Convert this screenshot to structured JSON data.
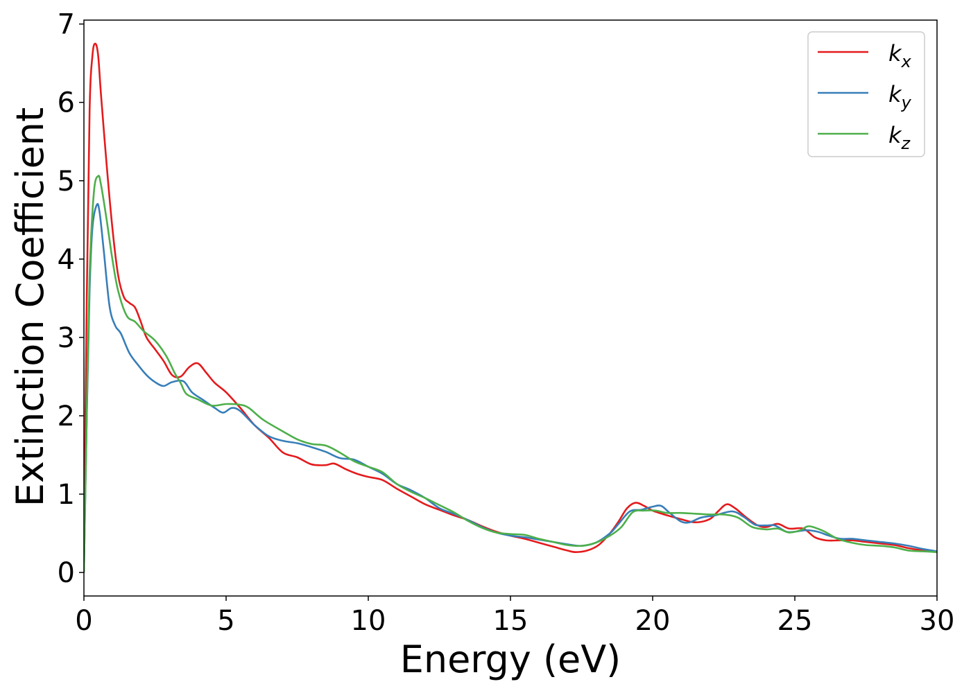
{
  "chart_data": {
    "type": "line",
    "xlabel": "Energy (eV)",
    "ylabel": "Extinction Coefficient",
    "xlim": [
      0,
      30
    ],
    "ylim": [
      -0.3,
      7.05
    ],
    "xticks": [
      0,
      5,
      10,
      15,
      20,
      25,
      30
    ],
    "yticks": [
      0,
      1,
      2,
      3,
      4,
      5,
      6,
      7
    ],
    "grid": false,
    "legend_position": "top-right",
    "series": [
      {
        "key": "kx",
        "name": "k",
        "sub": "x",
        "color": "#e41a1c",
        "points": [
          [
            0,
            0.0
          ],
          [
            0.1,
            3.5
          ],
          [
            0.2,
            5.9
          ],
          [
            0.3,
            6.6
          ],
          [
            0.4,
            6.75
          ],
          [
            0.5,
            6.6
          ],
          [
            0.6,
            6.1
          ],
          [
            0.8,
            5.2
          ],
          [
            1.0,
            4.4
          ],
          [
            1.2,
            3.8
          ],
          [
            1.4,
            3.52
          ],
          [
            1.6,
            3.44
          ],
          [
            1.8,
            3.38
          ],
          [
            2.0,
            3.2
          ],
          [
            2.2,
            3.0
          ],
          [
            2.5,
            2.85
          ],
          [
            2.8,
            2.7
          ],
          [
            3.1,
            2.52
          ],
          [
            3.4,
            2.5
          ],
          [
            3.7,
            2.62
          ],
          [
            4.0,
            2.67
          ],
          [
            4.3,
            2.55
          ],
          [
            4.6,
            2.42
          ],
          [
            5.0,
            2.3
          ],
          [
            5.5,
            2.1
          ],
          [
            6.0,
            1.88
          ],
          [
            6.5,
            1.72
          ],
          [
            7.0,
            1.53
          ],
          [
            7.5,
            1.47
          ],
          [
            8.0,
            1.38
          ],
          [
            8.5,
            1.37
          ],
          [
            8.8,
            1.39
          ],
          [
            9.2,
            1.32
          ],
          [
            9.6,
            1.26
          ],
          [
            10.0,
            1.22
          ],
          [
            10.5,
            1.18
          ],
          [
            11.0,
            1.07
          ],
          [
            11.5,
            0.97
          ],
          [
            12.0,
            0.87
          ],
          [
            12.5,
            0.8
          ],
          [
            13.0,
            0.73
          ],
          [
            13.5,
            0.67
          ],
          [
            14.0,
            0.59
          ],
          [
            14.5,
            0.52
          ],
          [
            15.0,
            0.47
          ],
          [
            15.5,
            0.43
          ],
          [
            16.0,
            0.38
          ],
          [
            16.5,
            0.33
          ],
          [
            17.0,
            0.28
          ],
          [
            17.3,
            0.26
          ],
          [
            17.7,
            0.28
          ],
          [
            18.1,
            0.35
          ],
          [
            18.5,
            0.5
          ],
          [
            18.8,
            0.65
          ],
          [
            19.1,
            0.82
          ],
          [
            19.4,
            0.89
          ],
          [
            19.7,
            0.85
          ],
          [
            20.0,
            0.79
          ],
          [
            20.5,
            0.73
          ],
          [
            21.0,
            0.68
          ],
          [
            21.5,
            0.64
          ],
          [
            22.0,
            0.68
          ],
          [
            22.3,
            0.78
          ],
          [
            22.6,
            0.87
          ],
          [
            22.9,
            0.82
          ],
          [
            23.3,
            0.7
          ],
          [
            23.7,
            0.6
          ],
          [
            24.0,
            0.58
          ],
          [
            24.4,
            0.62
          ],
          [
            24.8,
            0.56
          ],
          [
            25.3,
            0.56
          ],
          [
            25.7,
            0.45
          ],
          [
            26.1,
            0.41
          ],
          [
            26.6,
            0.41
          ],
          [
            27.0,
            0.41
          ],
          [
            27.5,
            0.39
          ],
          [
            28.0,
            0.37
          ],
          [
            28.5,
            0.35
          ],
          [
            29.0,
            0.31
          ],
          [
            29.5,
            0.28
          ],
          [
            30.0,
            0.26
          ]
        ]
      },
      {
        "key": "ky",
        "name": "k",
        "sub": "y",
        "color": "#377eb8",
        "points": [
          [
            0,
            0.0
          ],
          [
            0.1,
            2.0
          ],
          [
            0.2,
            3.6
          ],
          [
            0.3,
            4.4
          ],
          [
            0.45,
            4.69
          ],
          [
            0.55,
            4.6
          ],
          [
            0.7,
            4.1
          ],
          [
            0.9,
            3.4
          ],
          [
            1.1,
            3.15
          ],
          [
            1.3,
            3.05
          ],
          [
            1.6,
            2.8
          ],
          [
            1.9,
            2.65
          ],
          [
            2.2,
            2.52
          ],
          [
            2.5,
            2.43
          ],
          [
            2.8,
            2.38
          ],
          [
            3.1,
            2.43
          ],
          [
            3.5,
            2.44
          ],
          [
            3.8,
            2.3
          ],
          [
            4.2,
            2.2
          ],
          [
            4.6,
            2.1
          ],
          [
            4.9,
            2.04
          ],
          [
            5.2,
            2.1
          ],
          [
            5.5,
            2.06
          ],
          [
            6.0,
            1.88
          ],
          [
            6.5,
            1.74
          ],
          [
            7.0,
            1.68
          ],
          [
            7.5,
            1.65
          ],
          [
            8.0,
            1.6
          ],
          [
            8.5,
            1.54
          ],
          [
            9.0,
            1.46
          ],
          [
            9.5,
            1.44
          ],
          [
            10.0,
            1.35
          ],
          [
            10.5,
            1.26
          ],
          [
            11.0,
            1.13
          ],
          [
            11.5,
            1.05
          ],
          [
            12.0,
            0.95
          ],
          [
            12.5,
            0.82
          ],
          [
            13.0,
            0.75
          ],
          [
            13.5,
            0.67
          ],
          [
            14.0,
            0.58
          ],
          [
            14.5,
            0.51
          ],
          [
            15.0,
            0.47
          ],
          [
            15.5,
            0.45
          ],
          [
            16.0,
            0.42
          ],
          [
            16.5,
            0.39
          ],
          [
            17.0,
            0.36
          ],
          [
            17.5,
            0.34
          ],
          [
            18.0,
            0.38
          ],
          [
            18.5,
            0.5
          ],
          [
            18.8,
            0.62
          ],
          [
            19.2,
            0.78
          ],
          [
            19.6,
            0.8
          ],
          [
            20.0,
            0.84
          ],
          [
            20.3,
            0.85
          ],
          [
            20.6,
            0.76
          ],
          [
            21.0,
            0.65
          ],
          [
            21.3,
            0.64
          ],
          [
            21.7,
            0.7
          ],
          [
            22.2,
            0.73
          ],
          [
            22.8,
            0.78
          ],
          [
            23.2,
            0.71
          ],
          [
            23.6,
            0.61
          ],
          [
            24.0,
            0.6
          ],
          [
            24.3,
            0.6
          ],
          [
            24.7,
            0.52
          ],
          [
            25.0,
            0.52
          ],
          [
            25.4,
            0.54
          ],
          [
            25.8,
            0.52
          ],
          [
            26.2,
            0.47
          ],
          [
            26.6,
            0.43
          ],
          [
            27.0,
            0.43
          ],
          [
            27.5,
            0.41
          ],
          [
            28.0,
            0.39
          ],
          [
            28.5,
            0.37
          ],
          [
            29.0,
            0.34
          ],
          [
            29.5,
            0.3
          ],
          [
            30.0,
            0.27
          ]
        ]
      },
      {
        "key": "kz",
        "name": "k",
        "sub": "z",
        "color": "#4daf4a",
        "points": [
          [
            0,
            0.0
          ],
          [
            0.1,
            2.0
          ],
          [
            0.2,
            3.8
          ],
          [
            0.35,
            4.85
          ],
          [
            0.5,
            5.06
          ],
          [
            0.6,
            4.95
          ],
          [
            0.8,
            4.5
          ],
          [
            1.0,
            4.0
          ],
          [
            1.2,
            3.6
          ],
          [
            1.5,
            3.28
          ],
          [
            1.8,
            3.2
          ],
          [
            2.1,
            3.08
          ],
          [
            2.5,
            2.96
          ],
          [
            2.9,
            2.76
          ],
          [
            3.2,
            2.54
          ],
          [
            3.4,
            2.42
          ],
          [
            3.6,
            2.28
          ],
          [
            4.0,
            2.21
          ],
          [
            4.5,
            2.13
          ],
          [
            5.0,
            2.15
          ],
          [
            5.5,
            2.14
          ],
          [
            5.8,
            2.1
          ],
          [
            6.3,
            1.95
          ],
          [
            7.0,
            1.8
          ],
          [
            7.5,
            1.7
          ],
          [
            8.0,
            1.64
          ],
          [
            8.5,
            1.62
          ],
          [
            9.0,
            1.53
          ],
          [
            9.5,
            1.42
          ],
          [
            10.0,
            1.35
          ],
          [
            10.5,
            1.28
          ],
          [
            11.0,
            1.13
          ],
          [
            11.5,
            1.03
          ],
          [
            12.0,
            0.95
          ],
          [
            12.5,
            0.86
          ],
          [
            13.0,
            0.77
          ],
          [
            13.5,
            0.66
          ],
          [
            14.0,
            0.57
          ],
          [
            14.5,
            0.51
          ],
          [
            15.0,
            0.49
          ],
          [
            15.5,
            0.48
          ],
          [
            16.0,
            0.43
          ],
          [
            16.5,
            0.39
          ],
          [
            17.0,
            0.35
          ],
          [
            17.5,
            0.34
          ],
          [
            18.0,
            0.38
          ],
          [
            18.5,
            0.47
          ],
          [
            18.9,
            0.58
          ],
          [
            19.3,
            0.77
          ],
          [
            19.7,
            0.79
          ],
          [
            20.1,
            0.79
          ],
          [
            20.5,
            0.76
          ],
          [
            21.0,
            0.76
          ],
          [
            21.5,
            0.75
          ],
          [
            22.0,
            0.74
          ],
          [
            22.5,
            0.74
          ],
          [
            23.0,
            0.7
          ],
          [
            23.5,
            0.58
          ],
          [
            24.0,
            0.55
          ],
          [
            24.4,
            0.56
          ],
          [
            24.8,
            0.51
          ],
          [
            25.2,
            0.54
          ],
          [
            25.5,
            0.59
          ],
          [
            26.0,
            0.53
          ],
          [
            26.5,
            0.43
          ],
          [
            27.0,
            0.38
          ],
          [
            27.5,
            0.35
          ],
          [
            28.0,
            0.34
          ],
          [
            28.5,
            0.32
          ],
          [
            29.0,
            0.28
          ],
          [
            29.5,
            0.27
          ],
          [
            30.0,
            0.26
          ]
        ]
      }
    ]
  }
}
